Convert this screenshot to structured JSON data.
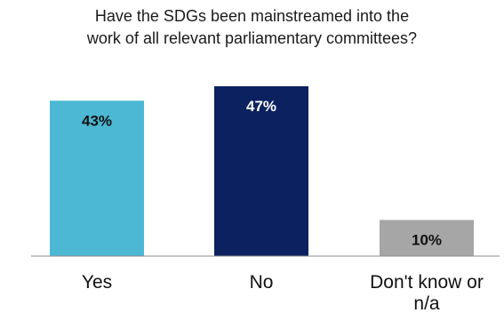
{
  "chart_data": {
    "type": "bar",
    "title_lines": [
      "Have the SDGs been mainstreamed into the",
      "work of all relevant parliamentary committees?"
    ],
    "categories": [
      [
        "Yes"
      ],
      [
        "No"
      ],
      [
        "Don't know or",
        "n/a"
      ]
    ],
    "values": [
      43,
      47,
      10
    ],
    "value_labels": [
      "43%",
      "47%",
      "10%"
    ],
    "colors": [
      "#4cb8d3",
      "#0c2260",
      "#a6a6a6"
    ],
    "label_colors": [
      "#111111",
      "#ffffff",
      "#111111"
    ],
    "ylim": [
      0,
      47
    ],
    "grid": false,
    "legend": "none"
  }
}
